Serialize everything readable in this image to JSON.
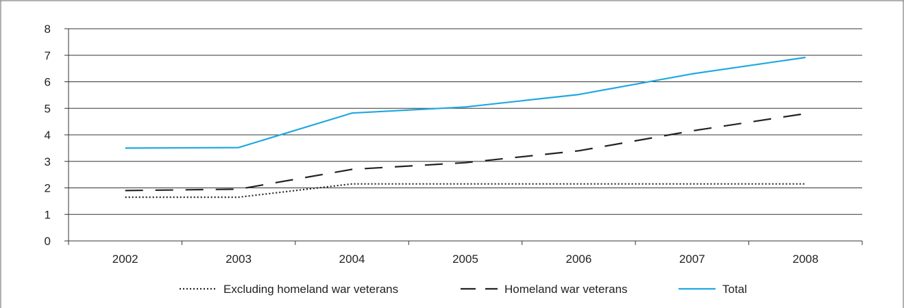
{
  "chart_data": {
    "type": "line",
    "categories": [
      "2002",
      "2003",
      "2004",
      "2005",
      "2006",
      "2007",
      "2008"
    ],
    "series": [
      {
        "name": "Excluding homeland war veterans",
        "values": [
          1.65,
          1.65,
          2.15,
          2.15,
          2.15,
          2.15,
          2.15
        ],
        "color": "#222222",
        "style": "dotted"
      },
      {
        "name": "Homeland war veterans",
        "values": [
          1.9,
          1.95,
          2.7,
          2.95,
          3.4,
          4.15,
          4.8
        ],
        "color": "#222222",
        "style": "dashed"
      },
      {
        "name": "Total",
        "values": [
          3.5,
          3.52,
          4.82,
          5.05,
          5.52,
          6.3,
          6.92
        ],
        "color": "#1fa8e0",
        "style": "solid"
      }
    ],
    "ylim": [
      0,
      8
    ],
    "yticks": [
      0,
      1,
      2,
      3,
      4,
      5,
      6,
      7,
      8
    ],
    "title": "",
    "xlabel": "",
    "ylabel": "",
    "grid": "horizontal",
    "legend_position": "bottom"
  }
}
